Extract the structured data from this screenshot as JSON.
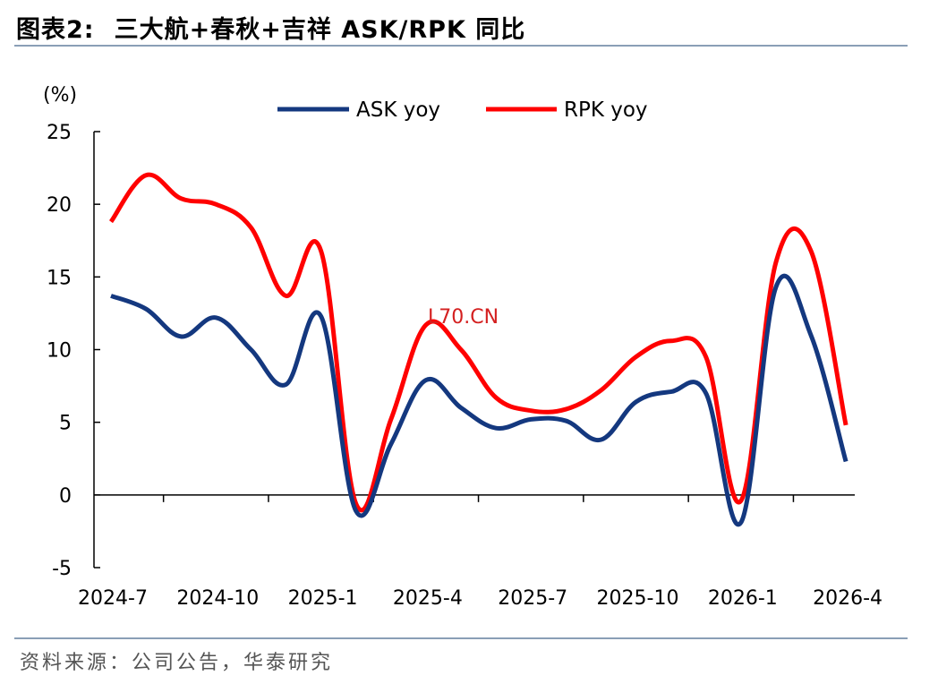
{
  "figure": {
    "label": "图表2:",
    "title": "三大航+春秋+吉祥 ASK/RPK 同比",
    "source": "资料来源：公司公告，华泰研究",
    "watermark": "L70.CN"
  },
  "colors": {
    "ask": "#14387f",
    "rpk": "#ff0000",
    "axis": "#000000",
    "rule": "#8a9fb6"
  },
  "chart_data": {
    "type": "line",
    "unit_label": "(%)",
    "ylim": [
      -5,
      25
    ],
    "yticks": [
      -5,
      0,
      5,
      10,
      15,
      20,
      25
    ],
    "grid": false,
    "legend_position": "top-center",
    "x": [
      "2024-7",
      "2024-8",
      "2024-9",
      "2024-10",
      "2024-11",
      "2024-12",
      "2025-1",
      "2025-2",
      "2025-3",
      "2025-4",
      "2025-5",
      "2025-6",
      "2025-7",
      "2025-8",
      "2025-9",
      "2025-10",
      "2025-11",
      "2025-12",
      "2026-1",
      "2026-2",
      "2026-3",
      "2026-4"
    ],
    "xtick_labels": [
      "2024-7",
      "2024-10",
      "2025-1",
      "2025-4",
      "2025-7",
      "2025-10",
      "2026-1",
      "2026-4"
    ],
    "series": [
      {
        "name": "ASK yoy",
        "color_key": "ask",
        "values": [
          13.7,
          12.8,
          10.9,
          12.2,
          10.0,
          7.6,
          12.3,
          -1.1,
          3.5,
          7.9,
          6.0,
          4.6,
          5.2,
          5.1,
          3.8,
          6.4,
          7.1,
          7.0,
          -1.9,
          14.3,
          11.0,
          2.3
        ]
      },
      {
        "name": "RPK yoy",
        "color_key": "rpk",
        "values": [
          18.8,
          22.0,
          20.4,
          20.0,
          18.4,
          13.7,
          16.8,
          -0.6,
          5.2,
          11.7,
          10.0,
          6.7,
          5.8,
          5.9,
          7.2,
          9.5,
          10.6,
          9.5,
          -0.4,
          16.0,
          16.8,
          4.8
        ]
      }
    ]
  }
}
